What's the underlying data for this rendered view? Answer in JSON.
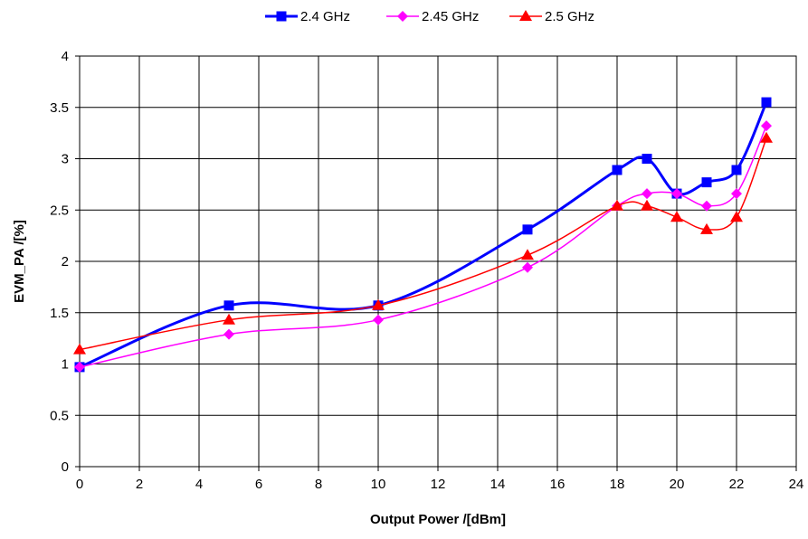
{
  "chart_data": {
    "type": "line",
    "xlabel": "Output Power /[dBm]",
    "ylabel": "EVM_PA /[%]",
    "xlim": [
      0,
      24
    ],
    "ylim": [
      0,
      4
    ],
    "xticks": [
      "0",
      "2",
      "4",
      "6",
      "8",
      "10",
      "12",
      "14",
      "16",
      "18",
      "20",
      "22",
      "24"
    ],
    "yticks": [
      "0",
      "0.5",
      "1",
      "1.5",
      "2",
      "2.5",
      "3",
      "3.5",
      "4"
    ],
    "grid": true,
    "legend_position": "top-center",
    "series": [
      {
        "name": "2.4 GHz",
        "color": "#0000ff",
        "marker": "square",
        "x": [
          0,
          5,
          10,
          15,
          18,
          19,
          20,
          21,
          22,
          23
        ],
        "y": [
          0.97,
          1.57,
          1.57,
          2.31,
          2.89,
          3.0,
          2.66,
          2.77,
          2.89,
          3.55
        ]
      },
      {
        "name": "2.45 GHz",
        "color": "#ff00ff",
        "marker": "diamond",
        "x": [
          0,
          5,
          10,
          15,
          18,
          19,
          20,
          21,
          22,
          23
        ],
        "y": [
          0.97,
          1.29,
          1.43,
          1.94,
          2.54,
          2.66,
          2.66,
          2.54,
          2.66,
          3.32
        ]
      },
      {
        "name": "2.5 GHz",
        "color": "#ff0000",
        "marker": "triangle",
        "x": [
          0,
          5,
          10,
          15,
          18,
          19,
          20,
          21,
          22,
          23
        ],
        "y": [
          1.14,
          1.43,
          1.57,
          2.06,
          2.54,
          2.54,
          2.43,
          2.31,
          2.43,
          3.2
        ]
      }
    ]
  }
}
